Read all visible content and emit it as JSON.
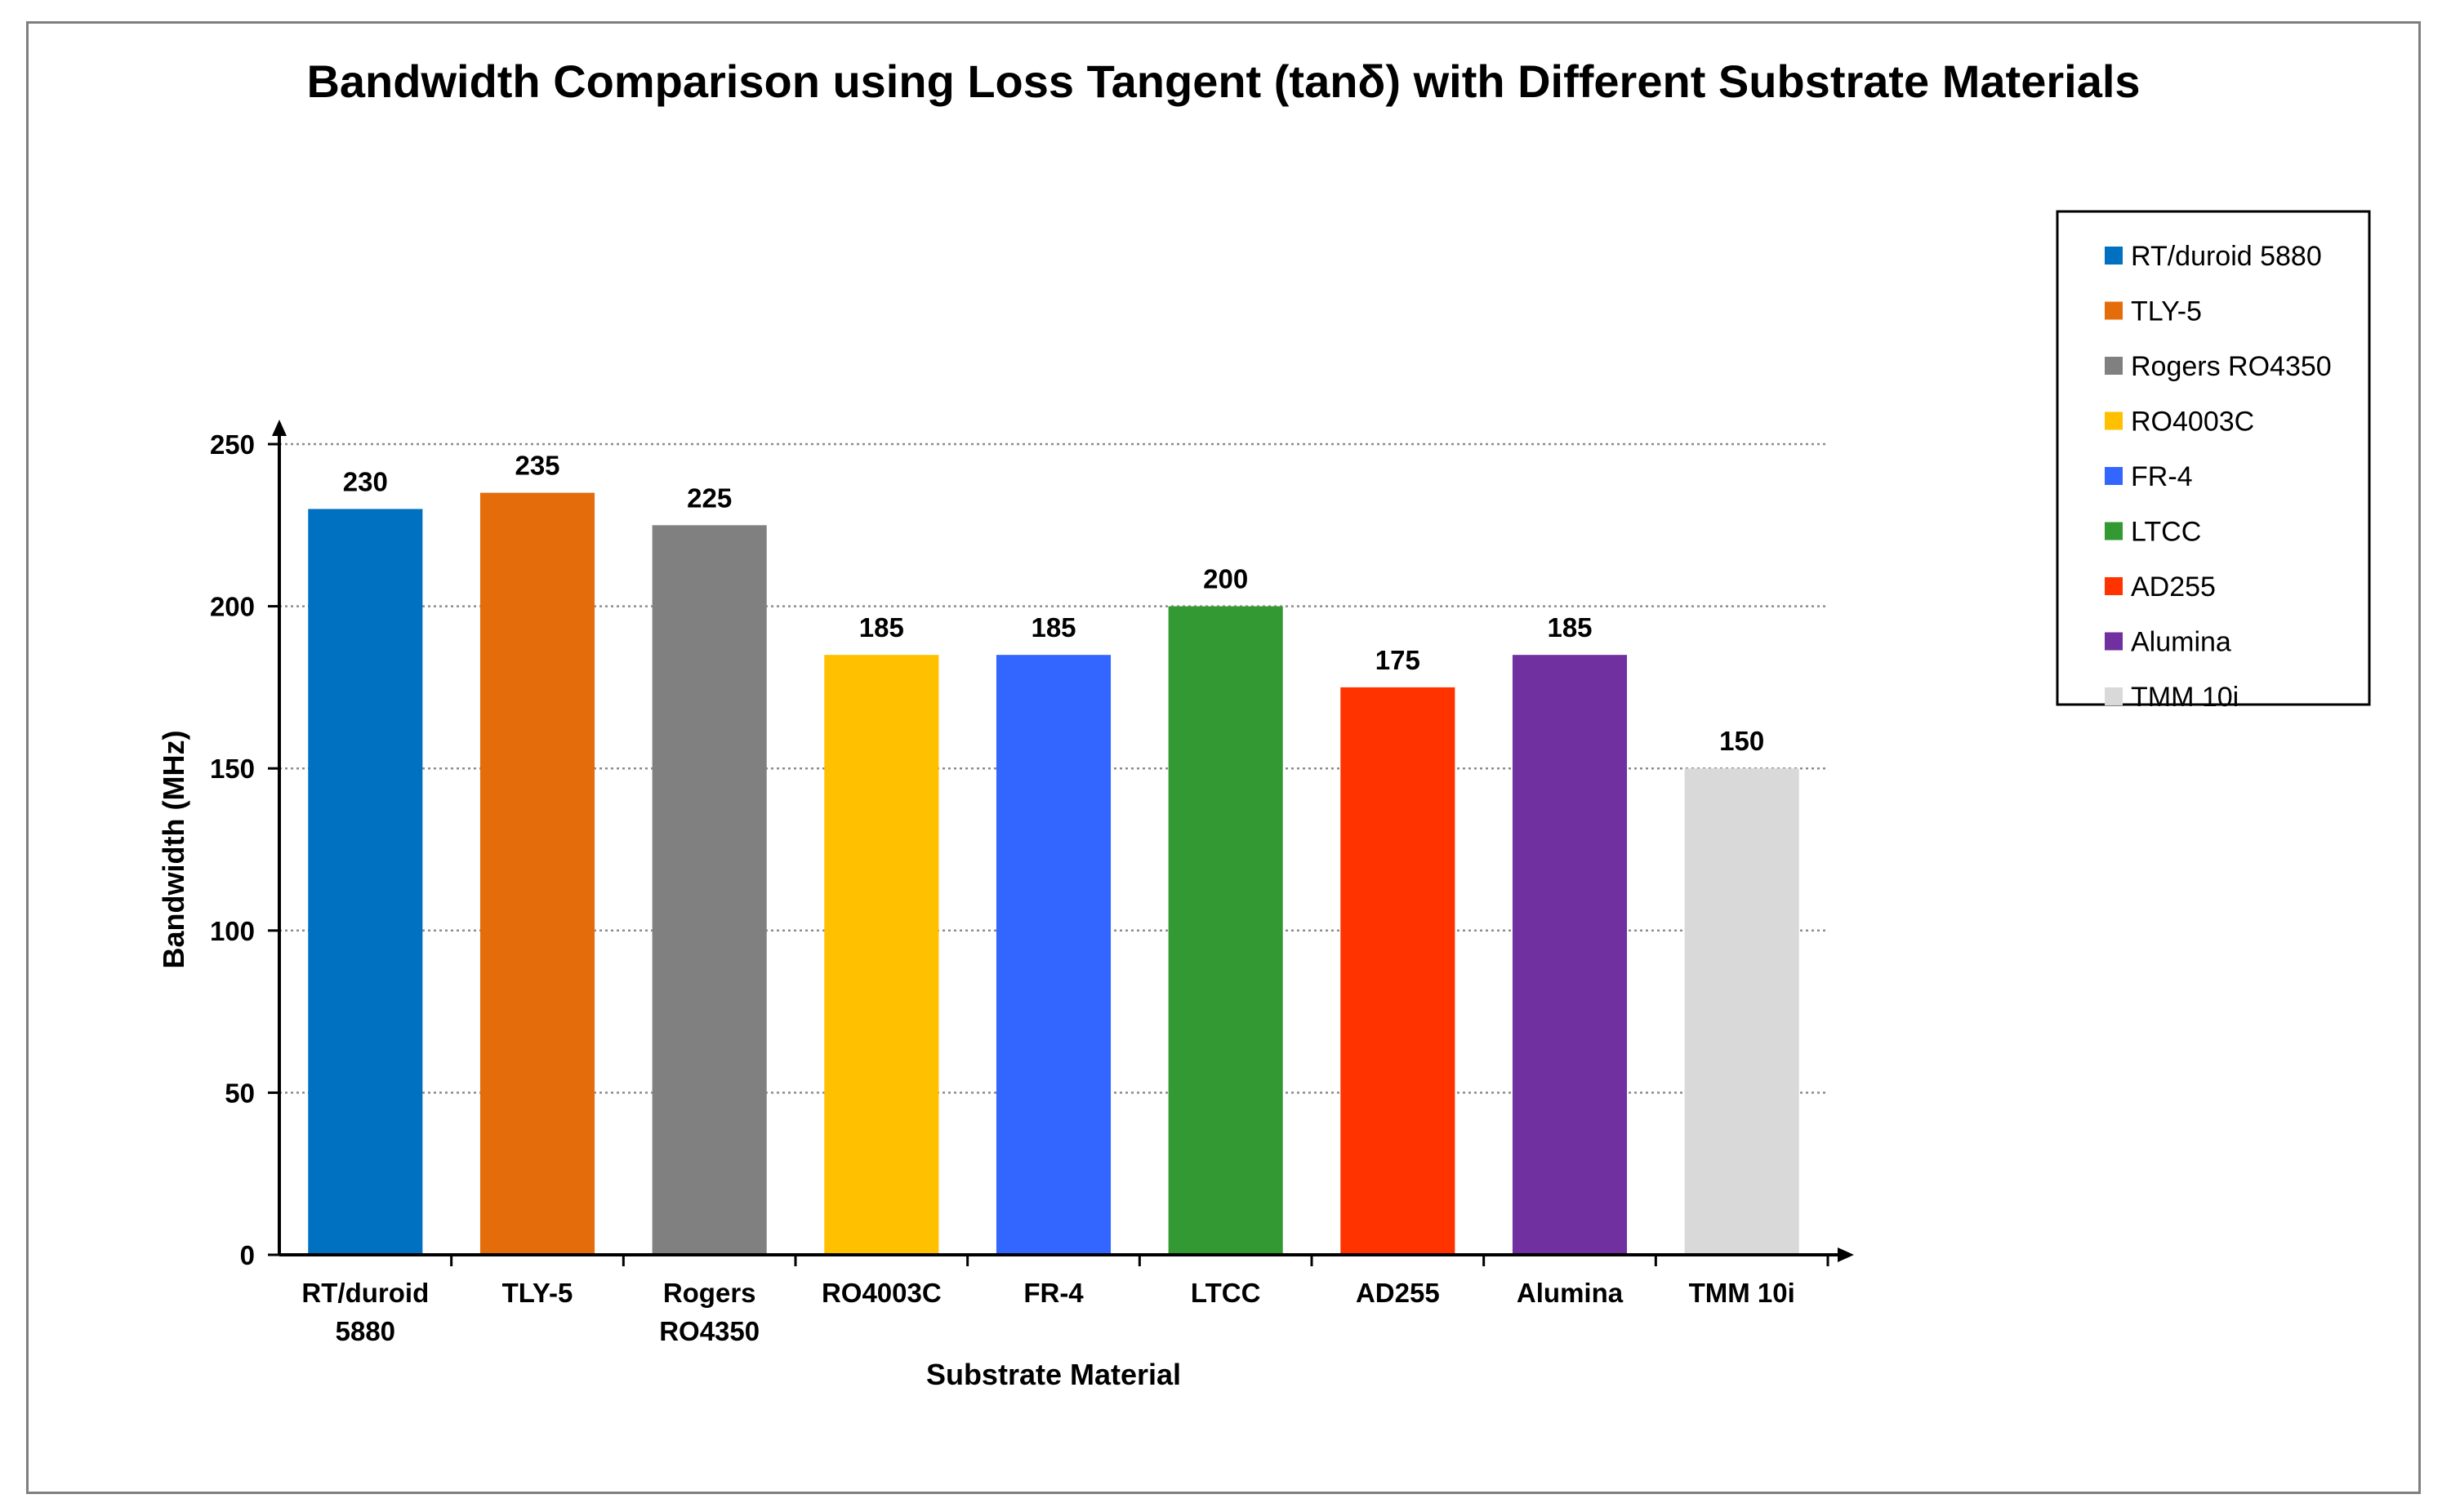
{
  "chart_data": {
    "type": "bar",
    "title": "Bandwidth Comparison using Loss Tangent (tanδ) with Different Substrate Materials",
    "xlabel": "Substrate Material",
    "ylabel": "Bandwidth (MHz)",
    "ylim": [
      0,
      250
    ],
    "yticks": [
      0,
      50,
      100,
      150,
      200,
      250
    ],
    "grid": true,
    "legend_position": "right",
    "categories": [
      {
        "label_lines": [
          "RT/duroid",
          "5880"
        ],
        "legend": "RT/duroid 5880"
      },
      {
        "label_lines": [
          "TLY-5"
        ],
        "legend": "TLY-5"
      },
      {
        "label_lines": [
          "Rogers",
          "RO4350"
        ],
        "legend": "Rogers RO4350"
      },
      {
        "label_lines": [
          "RO4003C"
        ],
        "legend": "RO4003C"
      },
      {
        "label_lines": [
          "FR-4"
        ],
        "legend": "FR-4"
      },
      {
        "label_lines": [
          "LTCC"
        ],
        "legend": "LTCC"
      },
      {
        "label_lines": [
          "AD255"
        ],
        "legend": "AD255"
      },
      {
        "label_lines": [
          "Alumina"
        ],
        "legend": "Alumina"
      },
      {
        "label_lines": [
          "TMM 10i"
        ],
        "legend": "TMM 10i"
      }
    ],
    "values": [
      230,
      235,
      225,
      185,
      185,
      200,
      175,
      185,
      150
    ],
    "colors": [
      "#0070c0",
      "#e46c0a",
      "#808080",
      "#ffc000",
      "#3366ff",
      "#339933",
      "#ff3300",
      "#7030a0",
      "#d9d9d9"
    ]
  }
}
